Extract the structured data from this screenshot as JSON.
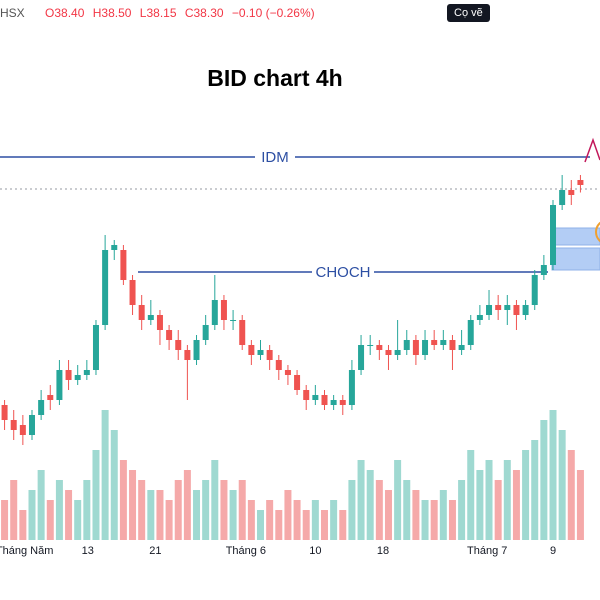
{
  "chart_data": {
    "type": "candlestick",
    "title": "BID  chart 4h",
    "header": {
      "exchange": "HSX",
      "open": "O38.40",
      "high": "H38.50",
      "low": "L38.15",
      "close": "C38.30",
      "change": "−0.10 (−0.26%)",
      "tooltip": "Cọ vẽ"
    },
    "annotations": {
      "idm": "IDM",
      "choch": "CHOCH"
    },
    "xticks": [
      {
        "value": 2.2,
        "label": "Tháng Năm"
      },
      {
        "value": 9.1,
        "label": "13"
      },
      {
        "value": 16.5,
        "label": "21"
      },
      {
        "value": 26.4,
        "label": "Tháng 6"
      },
      {
        "value": 34,
        "label": "10"
      },
      {
        "value": 41.4,
        "label": "18"
      },
      {
        "value": 52.8,
        "label": "Tháng 7"
      },
      {
        "value": 60,
        "label": "9"
      }
    ],
    "ylim": [
      32.7,
      40.2
    ],
    "y2lim": [
      0,
      16
    ],
    "up_color": "#26a69a",
    "down_color": "#ef5350",
    "volume_up_color": "#9fd9d1",
    "volume_down_color": "#f5a9a9",
    "open": [
      33.9,
      33.6,
      33.5,
      33.3,
      33.7,
      34.1,
      34.0,
      34.6,
      34.4,
      34.5,
      34.6,
      35.5,
      37.0,
      37.0,
      36.4,
      35.9,
      35.6,
      35.7,
      35.4,
      35.2,
      35.0,
      34.8,
      35.2,
      35.5,
      36.0,
      35.6,
      35.6,
      35.1,
      34.9,
      35.0,
      34.8,
      34.6,
      34.5,
      34.2,
      34.0,
      34.1,
      33.9,
      34.0,
      33.9,
      34.6,
      35.1,
      35.1,
      35.0,
      34.9,
      35.0,
      35.2,
      34.9,
      35.2,
      35.1,
      35.2,
      35.0,
      35.1,
      35.6,
      35.7,
      35.9,
      35.8,
      35.9,
      35.7,
      35.9,
      36.5,
      36.7,
      37.9,
      38.2,
      38.4
    ],
    "high": [
      34.0,
      33.8,
      33.7,
      33.8,
      34.2,
      34.3,
      34.8,
      34.8,
      34.7,
      34.8,
      35.6,
      37.3,
      37.2,
      37.1,
      36.5,
      36.1,
      36.0,
      35.8,
      35.5,
      35.4,
      35.1,
      35.3,
      35.7,
      36.5,
      36.1,
      35.8,
      35.7,
      35.2,
      35.2,
      35.1,
      34.9,
      34.7,
      34.6,
      34.3,
      34.3,
      34.2,
      34.1,
      34.1,
      34.8,
      35.3,
      35.3,
      35.2,
      35.1,
      35.6,
      35.4,
      35.3,
      35.4,
      35.4,
      35.4,
      35.3,
      35.4,
      35.7,
      35.9,
      36.2,
      36.1,
      36.1,
      36.0,
      36.0,
      36.6,
      36.9,
      38.0,
      38.5,
      38.4,
      38.5
    ],
    "low": [
      33.4,
      33.2,
      33.1,
      33.2,
      33.6,
      33.8,
      33.9,
      34.2,
      34.3,
      34.4,
      34.5,
      35.4,
      36.8,
      36.3,
      35.7,
      35.4,
      35.5,
      35.1,
      35.0,
      34.8,
      34.0,
      34.7,
      35.1,
      35.4,
      35.4,
      35.4,
      35.0,
      34.7,
      34.8,
      34.6,
      34.4,
      34.3,
      34.1,
      33.8,
      33.9,
      33.8,
      33.8,
      33.7,
      33.8,
      34.5,
      34.9,
      34.8,
      34.6,
      34.8,
      34.9,
      34.7,
      34.8,
      35.0,
      35.0,
      34.6,
      34.9,
      35.0,
      35.5,
      35.6,
      35.6,
      35.5,
      35.4,
      35.6,
      35.8,
      36.4,
      36.6,
      37.8,
      37.9,
      38.15
    ],
    "close": [
      33.6,
      33.4,
      33.3,
      33.7,
      34.0,
      34.0,
      34.6,
      34.4,
      34.5,
      34.6,
      35.5,
      37.0,
      37.1,
      36.4,
      35.9,
      35.6,
      35.7,
      35.4,
      35.2,
      35.0,
      34.8,
      35.2,
      35.5,
      36.0,
      35.6,
      35.6,
      35.1,
      34.9,
      35.0,
      34.8,
      34.6,
      34.5,
      34.2,
      34.0,
      34.1,
      33.9,
      34.0,
      33.9,
      34.6,
      35.1,
      35.1,
      35.0,
      34.9,
      35.0,
      35.2,
      34.9,
      35.2,
      35.1,
      35.2,
      35.0,
      35.1,
      35.6,
      35.7,
      35.9,
      35.8,
      35.9,
      35.7,
      35.9,
      36.5,
      36.7,
      37.9,
      38.2,
      38.1,
      38.3
    ],
    "volume": [
      4,
      6,
      3,
      5,
      7,
      4,
      6,
      5,
      4,
      6,
      9,
      13,
      11,
      8,
      7,
      6,
      5,
      5,
      4,
      6,
      7,
      5,
      6,
      8,
      6,
      5,
      6,
      4,
      3,
      4,
      3,
      5,
      4,
      3,
      4,
      3,
      4,
      3,
      6,
      8,
      7,
      6,
      5,
      8,
      6,
      5,
      4,
      4,
      5,
      4,
      6,
      9,
      7,
      8,
      6,
      8,
      7,
      9,
      10,
      12,
      13,
      11,
      9,
      7
    ]
  }
}
